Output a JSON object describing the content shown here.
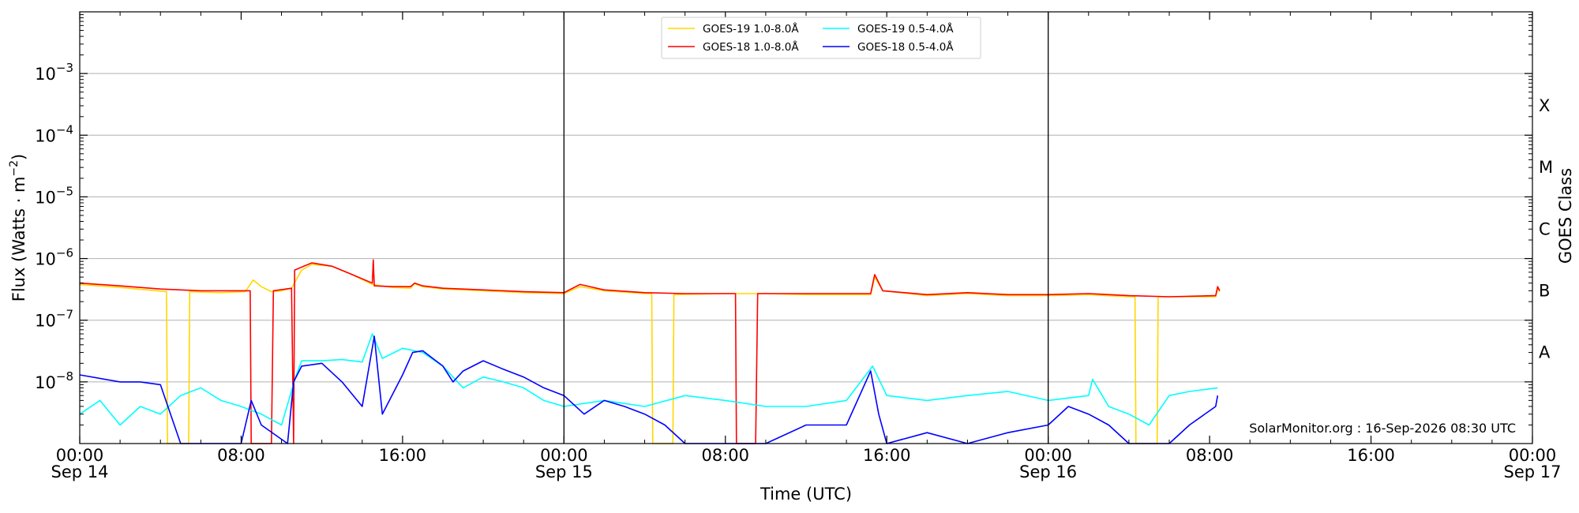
{
  "chart_data": {
    "type": "line",
    "xlabel": "Time (UTC)",
    "ylabel": "Flux (Watts · m",
    "ylabel_exponent": "−2",
    "ylabel_close": ")",
    "y_scale": "log",
    "ylim": [
      1e-09,
      0.01
    ],
    "y_ticks": [
      {
        "value": 1e-08,
        "base": "10",
        "exp": "−8"
      },
      {
        "value": 1e-07,
        "base": "10",
        "exp": "−7"
      },
      {
        "value": 1e-06,
        "base": "10",
        "exp": "−6"
      },
      {
        "value": 1e-05,
        "base": "10",
        "exp": "−5"
      },
      {
        "value": 0.0001,
        "base": "10",
        "exp": "−4"
      },
      {
        "value": 0.001,
        "base": "10",
        "exp": "−3"
      }
    ],
    "xlim_hours": [
      0,
      72
    ],
    "x_ticks": [
      {
        "hour": 0,
        "time": "00:00",
        "date": "Sep 14"
      },
      {
        "hour": 8,
        "time": "08:00",
        "date": ""
      },
      {
        "hour": 16,
        "time": "16:00",
        "date": ""
      },
      {
        "hour": 24,
        "time": "00:00",
        "date": "Sep 15"
      },
      {
        "hour": 32,
        "time": "08:00",
        "date": ""
      },
      {
        "hour": 40,
        "time": "16:00",
        "date": ""
      },
      {
        "hour": 48,
        "time": "00:00",
        "date": "Sep 16"
      },
      {
        "hour": 56,
        "time": "08:00",
        "date": ""
      },
      {
        "hour": 64,
        "time": "16:00",
        "date": ""
      },
      {
        "hour": 72,
        "time": "00:00",
        "date": "Sep 17"
      }
    ],
    "day_boundaries_hours": [
      24,
      48
    ],
    "grid": "horizontal",
    "right_axis": {
      "label": "GOES Class",
      "classes": [
        {
          "name": "A",
          "value": 3e-08
        },
        {
          "name": "B",
          "value": 3e-07
        },
        {
          "name": "C",
          "value": 3e-06
        },
        {
          "name": "M",
          "value": 3e-05
        },
        {
          "name": "X",
          "value": 0.0003
        }
      ]
    },
    "legend_position": "top-center",
    "series": [
      {
        "name": "GOES-19 1.0-8.0Å",
        "color": "#ffd700",
        "points": [
          [
            0,
            3.8e-07
          ],
          [
            2,
            3.4e-07
          ],
          [
            4.3,
            2.9e-07
          ],
          [
            4.35,
            1e-09
          ],
          [
            5.4,
            1e-09
          ],
          [
            5.45,
            2.9e-07
          ],
          [
            7,
            2.8e-07
          ],
          [
            8.2,
            2.9e-07
          ],
          [
            8.6,
            4.5e-07
          ],
          [
            9,
            3.5e-07
          ],
          [
            9.5,
            2.9e-07
          ],
          [
            10,
            3e-07
          ],
          [
            10.5,
            3.3e-07
          ],
          [
            11,
            6.5e-07
          ],
          [
            11.5,
            8e-07
          ],
          [
            12.5,
            7.5e-07
          ],
          [
            13.5,
            5.5e-07
          ],
          [
            14.5,
            3.8e-07
          ],
          [
            15.5,
            3.4e-07
          ],
          [
            16.4,
            3.3e-07
          ],
          [
            16.6,
            3.9e-07
          ],
          [
            17,
            3.5e-07
          ],
          [
            18,
            3.2e-07
          ],
          [
            20,
            3e-07
          ],
          [
            22,
            2.8e-07
          ],
          [
            24,
            2.7e-07
          ],
          [
            24.8,
            3.5e-07
          ],
          [
            26,
            3e-07
          ],
          [
            28,
            2.7e-07
          ],
          [
            28.35,
            2.7e-07
          ],
          [
            28.4,
            1e-09
          ],
          [
            29.4,
            1e-09
          ],
          [
            29.45,
            2.6e-07
          ],
          [
            32,
            2.7e-07
          ],
          [
            34,
            2.7e-07
          ],
          [
            36,
            2.6e-07
          ],
          [
            38,
            2.6e-07
          ],
          [
            39.2,
            2.6e-07
          ],
          [
            39.4,
            5e-07
          ],
          [
            39.8,
            3e-07
          ],
          [
            42,
            2.5e-07
          ],
          [
            44,
            2.7e-07
          ],
          [
            46,
            2.5e-07
          ],
          [
            48,
            2.5e-07
          ],
          [
            50,
            2.6e-07
          ],
          [
            52,
            2.4e-07
          ],
          [
            52.3,
            2.4e-07
          ],
          [
            52.35,
            1e-09
          ],
          [
            53.4,
            1e-09
          ],
          [
            53.45,
            2.4e-07
          ],
          [
            55,
            2.4e-07
          ],
          [
            56.3,
            2.4e-07
          ],
          [
            56.4,
            3.2e-07
          ],
          [
            56.5,
            2.9e-07
          ]
        ]
      },
      {
        "name": "GOES-18 1.0-8.0Å",
        "color": "#ff0000",
        "points": [
          [
            0,
            4e-07
          ],
          [
            2,
            3.6e-07
          ],
          [
            4,
            3.2e-07
          ],
          [
            6,
            3e-07
          ],
          [
            8.2,
            3e-07
          ],
          [
            8.45,
            3e-07
          ],
          [
            8.5,
            1e-09
          ],
          [
            9.5,
            1e-09
          ],
          [
            9.6,
            3e-07
          ],
          [
            10.5,
            3.3e-07
          ],
          [
            10.6,
            1e-09
          ],
          [
            10.65,
            6.5e-07
          ],
          [
            11.5,
            8.5e-07
          ],
          [
            12.5,
            7.5e-07
          ],
          [
            13.5,
            5.5e-07
          ],
          [
            14.5,
            4e-07
          ],
          [
            14.55,
            9.5e-07
          ],
          [
            14.6,
            3.6e-07
          ],
          [
            15.5,
            3.5e-07
          ],
          [
            16.4,
            3.5e-07
          ],
          [
            16.6,
            4e-07
          ],
          [
            17,
            3.6e-07
          ],
          [
            18,
            3.3e-07
          ],
          [
            20,
            3.1e-07
          ],
          [
            22,
            2.9e-07
          ],
          [
            24,
            2.8e-07
          ],
          [
            24.8,
            3.8e-07
          ],
          [
            26,
            3.1e-07
          ],
          [
            28,
            2.8e-07
          ],
          [
            30,
            2.7e-07
          ],
          [
            32,
            2.7e-07
          ],
          [
            32.5,
            2.7e-07
          ],
          [
            32.55,
            1e-09
          ],
          [
            33.5,
            1e-09
          ],
          [
            33.6,
            2.7e-07
          ],
          [
            36,
            2.7e-07
          ],
          [
            38,
            2.7e-07
          ],
          [
            39.2,
            2.7e-07
          ],
          [
            39.4,
            5.5e-07
          ],
          [
            39.8,
            3e-07
          ],
          [
            42,
            2.6e-07
          ],
          [
            44,
            2.8e-07
          ],
          [
            46,
            2.6e-07
          ],
          [
            48,
            2.6e-07
          ],
          [
            50,
            2.7e-07
          ],
          [
            52,
            2.5e-07
          ],
          [
            54,
            2.4e-07
          ],
          [
            56.3,
            2.5e-07
          ],
          [
            56.4,
            3.5e-07
          ],
          [
            56.5,
            3e-07
          ]
        ]
      },
      {
        "name": "GOES-19 0.5-4.0Å",
        "color": "#00ffff",
        "points": [
          [
            0,
            3e-09
          ],
          [
            1,
            5e-09
          ],
          [
            2,
            2e-09
          ],
          [
            3,
            4e-09
          ],
          [
            4,
            3e-09
          ],
          [
            5,
            6e-09
          ],
          [
            6,
            8e-09
          ],
          [
            7,
            5e-09
          ],
          [
            8,
            4e-09
          ],
          [
            9,
            3e-09
          ],
          [
            10,
            2e-09
          ],
          [
            10.7,
            1.2e-08
          ],
          [
            11,
            2.2e-08
          ],
          [
            12,
            2.2e-08
          ],
          [
            13,
            2.3e-08
          ],
          [
            14,
            2.1e-08
          ],
          [
            14.5,
            6e-08
          ],
          [
            15,
            2.4e-08
          ],
          [
            16,
            3.5e-08
          ],
          [
            17,
            3e-08
          ],
          [
            18,
            1.8e-08
          ],
          [
            19,
            8e-09
          ],
          [
            20,
            1.2e-08
          ],
          [
            21,
            1e-08
          ],
          [
            22,
            8e-09
          ],
          [
            23,
            5e-09
          ],
          [
            24,
            4e-09
          ],
          [
            26,
            5e-09
          ],
          [
            28,
            4e-09
          ],
          [
            30,
            6e-09
          ],
          [
            32,
            5e-09
          ],
          [
            34,
            4e-09
          ],
          [
            36,
            4e-09
          ],
          [
            38,
            5e-09
          ],
          [
            39.3,
            1.8e-08
          ],
          [
            40,
            6e-09
          ],
          [
            42,
            5e-09
          ],
          [
            44,
            6e-09
          ],
          [
            46,
            7e-09
          ],
          [
            48,
            5e-09
          ],
          [
            50,
            6e-09
          ],
          [
            50.2,
            1.1e-08
          ],
          [
            51,
            4e-09
          ],
          [
            52,
            3e-09
          ],
          [
            53,
            2e-09
          ],
          [
            54,
            6e-09
          ],
          [
            55,
            7e-09
          ],
          [
            56.4,
            8e-09
          ]
        ]
      },
      {
        "name": "GOES-18 0.5-4.0Å",
        "color": "#0000ff",
        "points": [
          [
            0,
            1.3e-08
          ],
          [
            2,
            1e-08
          ],
          [
            3,
            1e-08
          ],
          [
            4,
            9e-09
          ],
          [
            4.5,
            3e-09
          ],
          [
            5,
            1e-09
          ],
          [
            8,
            1e-09
          ],
          [
            8.5,
            5e-09
          ],
          [
            9,
            2e-09
          ],
          [
            10.3,
            1e-09
          ],
          [
            10.6,
            1e-08
          ],
          [
            11,
            1.8e-08
          ],
          [
            12,
            2e-08
          ],
          [
            13,
            1e-08
          ],
          [
            14,
            4e-09
          ],
          [
            14.6,
            5.5e-08
          ],
          [
            15,
            3e-09
          ],
          [
            16,
            1.3e-08
          ],
          [
            16.5,
            3e-08
          ],
          [
            17,
            3.2e-08
          ],
          [
            18,
            1.8e-08
          ],
          [
            18.5,
            1e-08
          ],
          [
            19,
            1.5e-08
          ],
          [
            20,
            2.2e-08
          ],
          [
            21,
            1.6e-08
          ],
          [
            22,
            1.2e-08
          ],
          [
            23,
            8e-09
          ],
          [
            24,
            6e-09
          ],
          [
            25,
            3e-09
          ],
          [
            26,
            5e-09
          ],
          [
            27,
            4e-09
          ],
          [
            28,
            3e-09
          ],
          [
            29,
            2e-09
          ],
          [
            30,
            1e-09
          ],
          [
            34,
            1e-09
          ],
          [
            36,
            2e-09
          ],
          [
            38,
            2e-09
          ],
          [
            39.2,
            1.5e-08
          ],
          [
            39.6,
            3e-09
          ],
          [
            40,
            1e-09
          ],
          [
            42,
            1.5e-09
          ],
          [
            44,
            1e-09
          ],
          [
            46,
            1.5e-09
          ],
          [
            48,
            2e-09
          ],
          [
            49,
            4e-09
          ],
          [
            50,
            3e-09
          ],
          [
            51,
            2e-09
          ],
          [
            52,
            1e-09
          ],
          [
            54,
            1e-09
          ],
          [
            55,
            2e-09
          ],
          [
            56.3,
            4e-09
          ],
          [
            56.4,
            6e-09
          ]
        ]
      }
    ],
    "annotation": "SolarMonitor.org : 16-Sep-2026 08:30 UTC"
  }
}
